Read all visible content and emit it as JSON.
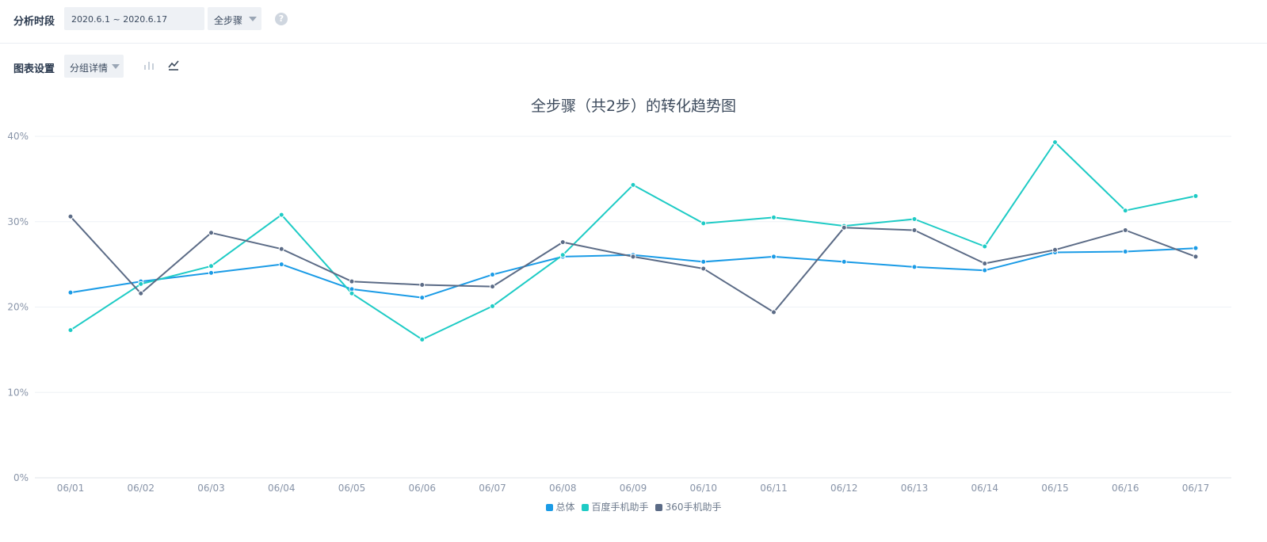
{
  "filters": {
    "period_label": "分析时段",
    "period_value": "2020.6.1 ~ 2020.6.17",
    "step_value": "全步骤",
    "help_icon": "question-circle-icon"
  },
  "chart_settings": {
    "label": "图表设置",
    "group_value": "分组详情",
    "bar_icon": "bar-chart-icon",
    "line_icon": "line-chart-icon"
  },
  "chart_data": {
    "type": "line",
    "title": "全步骤（共2步）的转化趋势图",
    "categories": [
      "06/01",
      "06/02",
      "06/03",
      "06/04",
      "06/05",
      "06/06",
      "06/07",
      "06/08",
      "06/09",
      "06/10",
      "06/11",
      "06/12",
      "06/13",
      "06/14",
      "06/15",
      "06/16",
      "06/17"
    ],
    "y_ticks": [
      "0%",
      "10%",
      "20%",
      "30%",
      "40%"
    ],
    "ylim": [
      0,
      40
    ],
    "grid": true,
    "legend": "bottom-center",
    "series": [
      {
        "name": "总体",
        "color": "#1a9be6",
        "values": [
          21.7,
          23.0,
          24.0,
          25.0,
          22.1,
          21.1,
          23.8,
          25.9,
          26.1,
          25.3,
          25.9,
          25.3,
          24.7,
          24.3,
          26.4,
          26.5,
          26.9
        ]
      },
      {
        "name": "百度手机助手",
        "color": "#1ecbc5",
        "values": [
          17.3,
          22.7,
          24.8,
          30.8,
          21.6,
          16.2,
          20.1,
          26.1,
          34.3,
          29.8,
          30.5,
          29.5,
          30.3,
          27.1,
          39.3,
          31.3,
          33.0
        ]
      },
      {
        "name": "360手机助手",
        "color": "#5b6b86",
        "values": [
          30.6,
          21.6,
          28.7,
          26.8,
          23.0,
          22.6,
          22.4,
          27.6,
          25.9,
          24.5,
          19.4,
          29.3,
          29.0,
          25.1,
          26.7,
          29.0,
          25.9
        ]
      }
    ]
  }
}
